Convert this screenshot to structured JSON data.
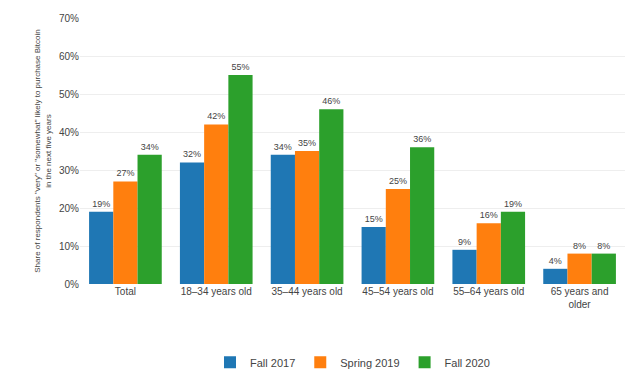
{
  "chart_data": {
    "type": "bar",
    "categories": [
      "Total",
      "18–34 years old",
      "35–44 years old",
      "45–54 years old",
      "55–64 years old",
      "65 years and\nolder"
    ],
    "series": [
      {
        "name": "Fall 2017",
        "values": [
          19,
          32,
          34,
          15,
          9,
          4
        ],
        "value_labels": [
          "19%",
          "32%",
          "34%",
          "15%",
          "9%",
          "4%"
        ]
      },
      {
        "name": "Spring 2019",
        "values": [
          27,
          42,
          35,
          25,
          16,
          8
        ],
        "value_labels": [
          "27%",
          "42%",
          "35%",
          "25%",
          "16%",
          "8%"
        ]
      },
      {
        "name": "Fall 2020",
        "values": [
          34,
          55,
          46,
          36,
          19,
          8
        ],
        "value_labels": [
          "34%",
          "55%",
          "46%",
          "36%",
          "19%",
          "8%"
        ]
      }
    ],
    "ylabel": "Share of respondents \"very\" or \"somewhat\" likely to purchase Bitcoin\nin the next five years",
    "ylim": [
      0,
      70
    ],
    "yticks": [
      {
        "value": 0,
        "label": "0%"
      },
      {
        "value": 10,
        "label": "10%"
      },
      {
        "value": 20,
        "label": "20%"
      },
      {
        "value": 30,
        "label": "30%"
      },
      {
        "value": 40,
        "label": "40%"
      },
      {
        "value": 50,
        "label": "50%"
      },
      {
        "value": 60,
        "label": "60%"
      },
      {
        "value": 70,
        "label": "70%"
      }
    ],
    "grid": true,
    "data_labels": true,
    "legend": "bottom"
  }
}
